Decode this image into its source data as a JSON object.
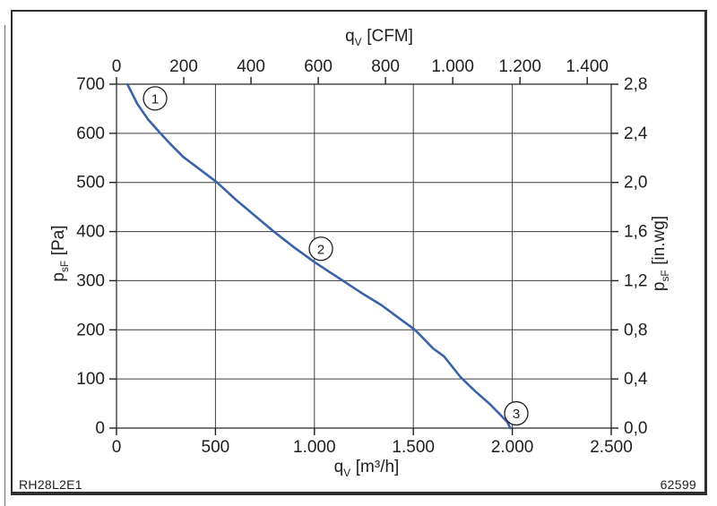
{
  "page": {
    "model_code": "RH28L2E1",
    "doc_number": "62599"
  },
  "chart_data": {
    "type": "line",
    "grid": true,
    "background": "#ffffff",
    "curve_color": "#3a62a8",
    "axes": {
      "top": {
        "label": {
          "base": "q",
          "sub": "V",
          "unit": "[CFM]"
        },
        "unit_per_m3h": 1.699,
        "ticks": [
          0,
          200,
          400,
          600,
          800,
          1000,
          1200,
          1400
        ],
        "tick_labels": [
          "0",
          "200",
          "400",
          "600",
          "800",
          "1.000",
          "1.200",
          "1.400"
        ]
      },
      "bottom": {
        "label": {
          "base": "q",
          "sub": "V",
          "unit": "[m³/h]"
        },
        "range": [
          0,
          2500
        ],
        "ticks": [
          0,
          500,
          1000,
          1500,
          2000,
          2500
        ],
        "tick_labels": [
          "0",
          "500",
          "1.000",
          "1.500",
          "2.000",
          "2.500"
        ]
      },
      "left": {
        "label": {
          "base": "p",
          "sub": "sF",
          "unit": "[Pa]"
        },
        "range": [
          0,
          700
        ],
        "ticks": [
          0,
          100,
          200,
          300,
          400,
          500,
          600,
          700
        ],
        "tick_labels": [
          "0",
          "100",
          "200",
          "300",
          "400",
          "500",
          "600",
          "700"
        ]
      },
      "right": {
        "label": {
          "base": "p",
          "sub": "sF",
          "unit": "[in.wg]"
        },
        "ticks_at_pa": [
          0,
          100,
          200,
          300,
          400,
          500,
          600,
          700
        ],
        "tick_labels": [
          "0,0",
          "0,4",
          "0,8",
          "1,2",
          "1,6",
          "2,0",
          "2,4",
          "2,8"
        ]
      }
    },
    "series": [
      {
        "name": "fan characteristic curve",
        "points": [
          [
            55,
            700
          ],
          [
            105,
            660
          ],
          [
            160,
            628
          ],
          [
            222,
            600
          ],
          [
            280,
            575
          ],
          [
            337,
            552
          ],
          [
            420,
            527
          ],
          [
            508,
            500
          ],
          [
            600,
            466
          ],
          [
            700,
            432
          ],
          [
            795,
            400
          ],
          [
            900,
            367
          ],
          [
            1000,
            338
          ],
          [
            1075,
            318
          ],
          [
            1144,
            300
          ],
          [
            1250,
            272
          ],
          [
            1340,
            250
          ],
          [
            1430,
            223
          ],
          [
            1505,
            201
          ],
          [
            1540,
            187
          ],
          [
            1600,
            162
          ],
          [
            1655,
            146
          ],
          [
            1740,
            103
          ],
          [
            1810,
            76
          ],
          [
            1886,
            49
          ],
          [
            1940,
            27
          ],
          [
            1975,
            12
          ],
          [
            1990,
            0
          ]
        ]
      }
    ],
    "annotations": [
      {
        "label": "1",
        "qv": 195,
        "pa": 671
      },
      {
        "label": "2",
        "qv": 1033,
        "pa": 365
      },
      {
        "label": "3",
        "qv": 2020,
        "pa": 30
      }
    ]
  }
}
